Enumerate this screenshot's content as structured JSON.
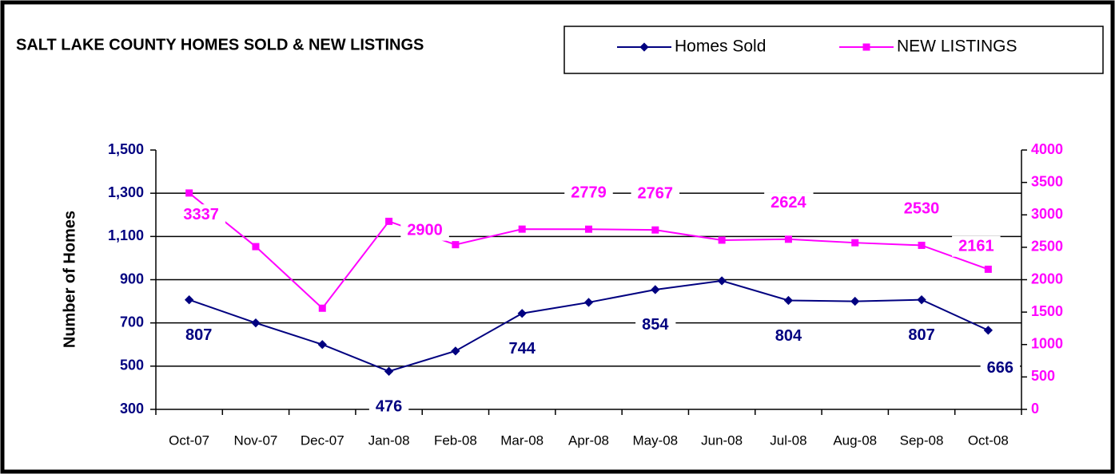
{
  "chart_data": {
    "type": "line",
    "title": "SALT LAKE COUNTY HOMES SOLD & NEW LISTINGS",
    "y_label": "Number of Homes",
    "categories": [
      "Oct-07",
      "Nov-07",
      "Dec-07",
      "Jan-08",
      "Feb-08",
      "Mar-08",
      "Apr-08",
      "May-08",
      "Jun-08",
      "Jul-08",
      "Aug-08",
      "Sep-08",
      "Oct-08"
    ],
    "series": [
      {
        "name": "Homes Sold",
        "color": "#000080",
        "axis": "y",
        "values": [
          807,
          700,
          600,
          476,
          570,
          744,
          795,
          854,
          895,
          804,
          800,
          807,
          666
        ],
        "value_labels": [
          "807",
          null,
          null,
          "476",
          null,
          "744",
          null,
          "854",
          null,
          "804",
          null,
          "807",
          "666"
        ]
      },
      {
        "name": "NEW LISTINGS",
        "color": "#ff00ff",
        "axis": "y2",
        "values": [
          3337,
          2510,
          1560,
          2900,
          2540,
          2780,
          2779,
          2767,
          2610,
          2624,
          2570,
          2530,
          2161
        ],
        "value_labels": [
          "3337",
          null,
          null,
          "2900",
          null,
          null,
          "2779",
          "2767",
          null,
          "2624",
          null,
          "2530",
          "2161"
        ]
      }
    ],
    "ylim": [
      300,
      1500
    ],
    "yticks": [
      300,
      500,
      700,
      900,
      {
        "value": 1100,
        "label": "1,100"
      },
      {
        "value": 1300,
        "label": "1,300"
      },
      {
        "value": 1500,
        "label": "1,500"
      }
    ],
    "y2lim": [
      0,
      4000
    ],
    "y2ticks": [
      0,
      500,
      1000,
      1500,
      2000,
      2500,
      3000,
      3500,
      4000
    ],
    "grid": true
  }
}
